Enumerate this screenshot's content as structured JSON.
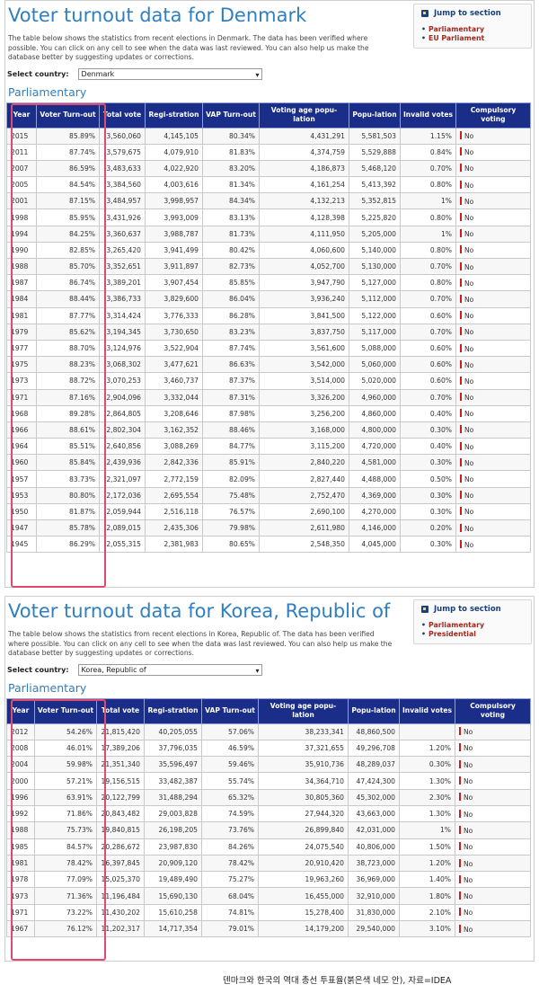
{
  "denmark": {
    "title": "Voter turnout data for Denmark",
    "intro": "The table below shows the statistics from recent elections in Denmark. The data has been verified where possible. You can click on any cell to see when the data was last reviewed. You can also help us make the database better by suggesting updates or corrections.",
    "select_label": "Select country:",
    "select_value": "Denmark",
    "subtitle": "Parliamentary",
    "jump": {
      "title": "Jump to section",
      "items": [
        "Parliamentary",
        "EU Parliament"
      ]
    },
    "headers": [
      "Year",
      "Voter Turn-out",
      "Total vote",
      "Regi-stration",
      "VAP Turn-out",
      "Voting age popu-lation",
      "Popu-lation",
      "Invalid votes",
      "Compulsory voting"
    ],
    "rows": [
      [
        "2015",
        "85.89%",
        "3,560,060",
        "4,145,105",
        "80.34%",
        "4,431,291",
        "5,581,503",
        "1.15%",
        "No"
      ],
      [
        "2011",
        "87.74%",
        "3,579,675",
        "4,079,910",
        "81.83%",
        "4,374,759",
        "5,529,888",
        "0.84%",
        "No"
      ],
      [
        "2007",
        "86.59%",
        "3,483,633",
        "4,022,920",
        "83.20%",
        "4,186,873",
        "5,468,120",
        "0.70%",
        "No"
      ],
      [
        "2005",
        "84.54%",
        "3,384,560",
        "4,003,616",
        "81.34%",
        "4,161,254",
        "5,413,392",
        "0.80%",
        "No"
      ],
      [
        "2001",
        "87.15%",
        "3,484,957",
        "3,998,957",
        "84.34%",
        "4,132,213",
        "5,352,815",
        "1%",
        "No"
      ],
      [
        "1998",
        "85.95%",
        "3,431,926",
        "3,993,009",
        "83.13%",
        "4,128,398",
        "5,225,820",
        "0.80%",
        "No"
      ],
      [
        "1994",
        "84.25%",
        "3,360,637",
        "3,988,787",
        "81.73%",
        "4,111,950",
        "5,205,000",
        "1%",
        "No"
      ],
      [
        "1990",
        "82.85%",
        "3,265,420",
        "3,941,499",
        "80.42%",
        "4,060,600",
        "5,140,000",
        "0.80%",
        "No"
      ],
      [
        "1988",
        "85.70%",
        "3,352,651",
        "3,911,897",
        "82.73%",
        "4,052,700",
        "5,130,000",
        "0.70%",
        "No"
      ],
      [
        "1987",
        "86.74%",
        "3,389,201",
        "3,907,454",
        "85.85%",
        "3,947,790",
        "5,127,000",
        "0.80%",
        "No"
      ],
      [
        "1984",
        "88.44%",
        "3,386,733",
        "3,829,600",
        "86.04%",
        "3,936,240",
        "5,112,000",
        "0.70%",
        "No"
      ],
      [
        "1981",
        "87.77%",
        "3,314,424",
        "3,776,333",
        "86.28%",
        "3,841,500",
        "5,122,000",
        "0.60%",
        "No"
      ],
      [
        "1979",
        "85.62%",
        "3,194,345",
        "3,730,650",
        "83.23%",
        "3,837,750",
        "5,117,000",
        "0.70%",
        "No"
      ],
      [
        "1977",
        "88.70%",
        "3,124,976",
        "3,522,904",
        "87.74%",
        "3,561,600",
        "5,088,000",
        "0.60%",
        "No"
      ],
      [
        "1975",
        "88.23%",
        "3,068,302",
        "3,477,621",
        "86.63%",
        "3,542,000",
        "5,060,000",
        "0.60%",
        "No"
      ],
      [
        "1973",
        "88.72%",
        "3,070,253",
        "3,460,737",
        "87.37%",
        "3,514,000",
        "5,020,000",
        "0.60%",
        "No"
      ],
      [
        "1971",
        "87.16%",
        "2,904,096",
        "3,332,044",
        "87.31%",
        "3,326,200",
        "4,960,000",
        "0.70%",
        "No"
      ],
      [
        "1968",
        "89.28%",
        "2,864,805",
        "3,208,646",
        "87.98%",
        "3,256,200",
        "4,860,000",
        "0.40%",
        "No"
      ],
      [
        "1966",
        "88.61%",
        "2,802,304",
        "3,162,352",
        "88.46%",
        "3,168,000",
        "4,800,000",
        "0.30%",
        "No"
      ],
      [
        "1964",
        "85.51%",
        "2,640,856",
        "3,088,269",
        "84.77%",
        "3,115,200",
        "4,720,000",
        "0.40%",
        "No"
      ],
      [
        "1960",
        "85.84%",
        "2,439,936",
        "2,842,336",
        "85.91%",
        "2,840,220",
        "4,581,000",
        "0.30%",
        "No"
      ],
      [
        "1957",
        "83.73%",
        "2,321,097",
        "2,772,159",
        "82.09%",
        "2,827,440",
        "4,488,000",
        "0.50%",
        "No"
      ],
      [
        "1953",
        "80.80%",
        "2,172,036",
        "2,695,554",
        "75.48%",
        "2,752,470",
        "4,369,000",
        "0.30%",
        "No"
      ],
      [
        "1950",
        "81.87%",
        "2,059,944",
        "2,516,118",
        "76.57%",
        "2,690,100",
        "4,270,000",
        "0.30%",
        "No"
      ],
      [
        "1947",
        "85.78%",
        "2,089,015",
        "2,435,306",
        "79.98%",
        "2,611,980",
        "4,146,000",
        "0.20%",
        "No"
      ],
      [
        "1945",
        "86.29%",
        "2,055,315",
        "2,381,983",
        "80.65%",
        "2,548,350",
        "4,045,000",
        "0.30%",
        "No"
      ]
    ]
  },
  "korea": {
    "title": "Voter turnout data for Korea, Republic of",
    "intro": "The table below shows the statistics from recent elections in Korea, Republic of. The data has been verified where possible. You can click on any cell to see when the data was last reviewed. You can also help us make the database better by suggesting updates or corrections.",
    "select_label": "Select country:",
    "select_value": "Korea, Republic of",
    "subtitle": "Parliamentary",
    "jump": {
      "title": "Jump to section",
      "items": [
        "Parliamentary",
        "Presidential"
      ]
    },
    "headers": [
      "Year",
      "Voter Turn-out",
      "Total vote",
      "Regi-stration",
      "VAP Turn-out",
      "Voting age popu-lation",
      "Popu-lation",
      "Invalid votes",
      "Compulsory voting"
    ],
    "rows": [
      [
        "2012",
        "54.26%",
        "21,815,420",
        "40,205,055",
        "57.06%",
        "38,233,341",
        "48,860,500",
        "",
        "No"
      ],
      [
        "2008",
        "46.01%",
        "17,389,206",
        "37,796,035",
        "46.59%",
        "37,321,655",
        "49,296,708",
        "1.20%",
        "No"
      ],
      [
        "2004",
        "59.98%",
        "21,351,340",
        "35,596,497",
        "59.46%",
        "35,910,736",
        "48,289,037",
        "0.30%",
        "No"
      ],
      [
        "2000",
        "57.21%",
        "19,156,515",
        "33,482,387",
        "55.74%",
        "34,364,710",
        "47,424,300",
        "1.30%",
        "No"
      ],
      [
        "1996",
        "63.91%",
        "20,122,799",
        "31,488,294",
        "65.32%",
        "30,805,360",
        "45,302,000",
        "2.30%",
        "No"
      ],
      [
        "1992",
        "71.86%",
        "20,843,482",
        "29,003,828",
        "74.59%",
        "27,944,320",
        "43,663,000",
        "1.30%",
        "No"
      ],
      [
        "1988",
        "75.73%",
        "19,840,815",
        "26,198,205",
        "73.76%",
        "26,899,840",
        "42,031,000",
        "1%",
        "No"
      ],
      [
        "1985",
        "84.57%",
        "20,286,672",
        "23,987,830",
        "84.26%",
        "24,075,540",
        "40,806,000",
        "1.50%",
        "No"
      ],
      [
        "1981",
        "78.42%",
        "16,397,845",
        "20,909,120",
        "78.42%",
        "20,910,420",
        "38,723,000",
        "1.20%",
        "No"
      ],
      [
        "1978",
        "77.09%",
        "15,025,370",
        "19,489,490",
        "75.27%",
        "19,963,260",
        "36,969,000",
        "1.40%",
        "No"
      ],
      [
        "1973",
        "71.36%",
        "11,196,484",
        "15,690,130",
        "68.04%",
        "16,455,000",
        "32,910,000",
        "1.80%",
        "No"
      ],
      [
        "1971",
        "73.22%",
        "11,430,202",
        "15,610,258",
        "74.81%",
        "15,278,400",
        "31,830,000",
        "2.10%",
        "No"
      ],
      [
        "1967",
        "76.12%",
        "11,202,317",
        "14,717,354",
        "79.01%",
        "14,179,200",
        "29,540,000",
        "3.10%",
        "No"
      ]
    ]
  },
  "caption": "덴마크와 한국의 역대 총선 투표율(붉은색 네모 안), 자료=IDEA",
  "colors": {
    "title_blue": "#2f7fc1",
    "header_navy": "#1a2d88",
    "highlight": "#e04b6b",
    "bar_red": "#d21a1a",
    "link_red": "#a3271c"
  }
}
